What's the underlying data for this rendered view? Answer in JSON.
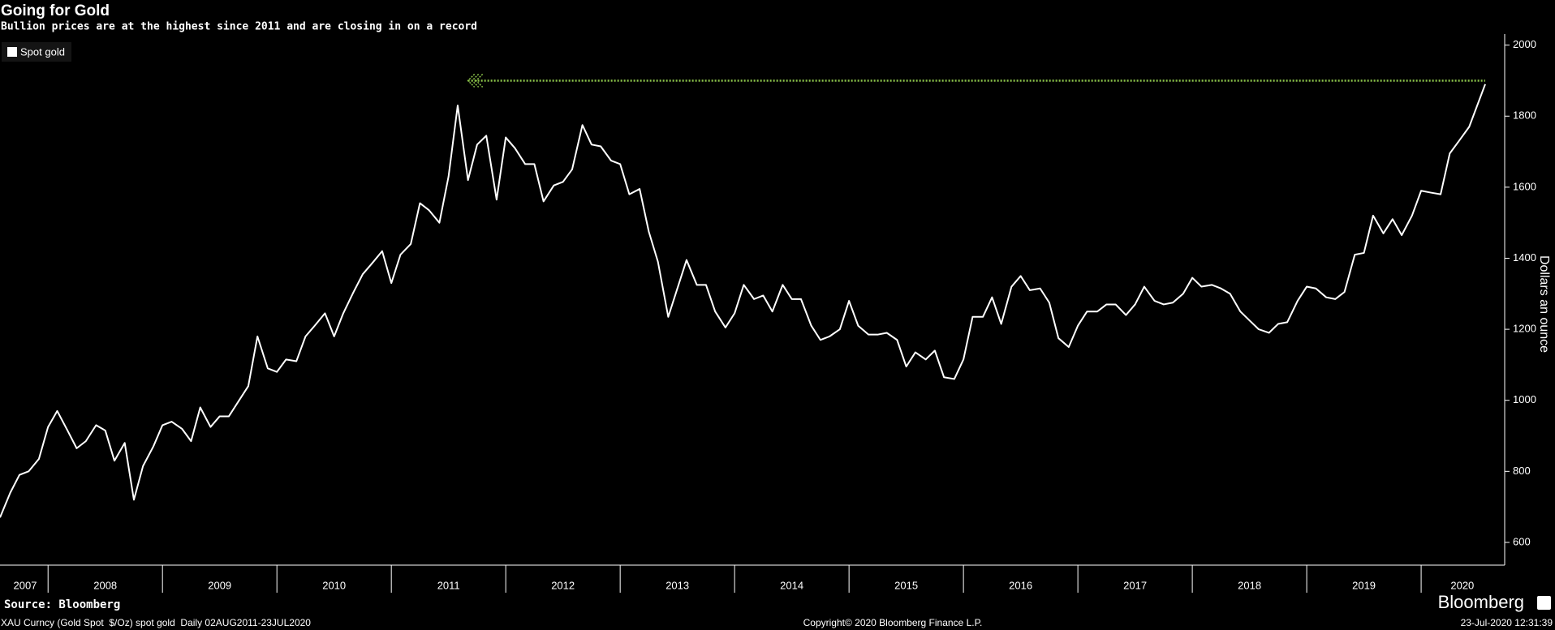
{
  "chart_data": {
    "type": "line",
    "title": "Going for Gold",
    "subtitle": "Bullion prices are at the highest since 2011 and are closing in on a record",
    "y_axis_label": "Dollars an ounce",
    "legend_position": "upper left",
    "x": [
      2007.58,
      2007.67,
      2007.75,
      2007.83,
      2007.92,
      2008.0,
      2008.08,
      2008.17,
      2008.25,
      2008.33,
      2008.42,
      2008.5,
      2008.58,
      2008.67,
      2008.75,
      2008.83,
      2008.92,
      2009.0,
      2009.08,
      2009.17,
      2009.25,
      2009.33,
      2009.42,
      2009.5,
      2009.58,
      2009.67,
      2009.75,
      2009.83,
      2009.92,
      2010.0,
      2010.08,
      2010.17,
      2010.25,
      2010.33,
      2010.42,
      2010.5,
      2010.58,
      2010.67,
      2010.75,
      2010.83,
      2010.92,
      2011.0,
      2011.08,
      2011.17,
      2011.25,
      2011.33,
      2011.42,
      2011.5,
      2011.58,
      2011.67,
      2011.75,
      2011.83,
      2011.92,
      2012.0,
      2012.08,
      2012.17,
      2012.25,
      2012.33,
      2012.42,
      2012.5,
      2012.58,
      2012.67,
      2012.75,
      2012.83,
      2012.92,
      2013.0,
      2013.08,
      2013.17,
      2013.25,
      2013.33,
      2013.42,
      2013.5,
      2013.58,
      2013.67,
      2013.75,
      2013.83,
      2013.92,
      2014.0,
      2014.08,
      2014.17,
      2014.25,
      2014.33,
      2014.42,
      2014.5,
      2014.58,
      2014.67,
      2014.75,
      2014.83,
      2014.92,
      2015.0,
      2015.08,
      2015.17,
      2015.25,
      2015.33,
      2015.42,
      2015.5,
      2015.58,
      2015.67,
      2015.75,
      2015.83,
      2015.92,
      2016.0,
      2016.08,
      2016.17,
      2016.25,
      2016.33,
      2016.42,
      2016.5,
      2016.58,
      2016.67,
      2016.75,
      2016.83,
      2016.92,
      2017.0,
      2017.08,
      2017.17,
      2017.25,
      2017.33,
      2017.42,
      2017.5,
      2017.58,
      2017.67,
      2017.75,
      2017.83,
      2017.92,
      2018.0,
      2018.08,
      2018.17,
      2018.25,
      2018.33,
      2018.42,
      2018.5,
      2018.58,
      2018.67,
      2018.75,
      2018.83,
      2018.92,
      2019.0,
      2019.08,
      2019.17,
      2019.25,
      2019.33,
      2019.42,
      2019.5,
      2019.58,
      2019.67,
      2019.75,
      2019.83,
      2019.92,
      2020.0,
      2020.08,
      2020.17,
      2020.25,
      2020.33,
      2020.42,
      2020.56
    ],
    "series": [
      {
        "name": "Spot gold",
        "color": "#ffffff",
        "values": [
          670,
          740,
          790,
          800,
          835,
          925,
          970,
          915,
          865,
          885,
          930,
          915,
          830,
          880,
          720,
          815,
          870,
          930,
          940,
          920,
          885,
          980,
          925,
          955,
          955,
          1000,
          1040,
          1180,
          1090,
          1080,
          1115,
          1110,
          1180,
          1210,
          1245,
          1180,
          1245,
          1305,
          1355,
          1385,
          1420,
          1330,
          1410,
          1440,
          1555,
          1535,
          1500,
          1630,
          1830,
          1620,
          1720,
          1745,
          1565,
          1740,
          1710,
          1665,
          1665,
          1560,
          1605,
          1615,
          1650,
          1775,
          1720,
          1715,
          1675,
          1665,
          1580,
          1595,
          1475,
          1390,
          1235,
          1315,
          1395,
          1325,
          1325,
          1250,
          1205,
          1245,
          1325,
          1285,
          1295,
          1250,
          1325,
          1285,
          1285,
          1210,
          1170,
          1180,
          1200,
          1280,
          1210,
          1185,
          1185,
          1190,
          1170,
          1095,
          1135,
          1115,
          1140,
          1065,
          1060,
          1115,
          1235,
          1235,
          1290,
          1215,
          1320,
          1350,
          1310,
          1315,
          1275,
          1175,
          1150,
          1210,
          1250,
          1250,
          1270,
          1270,
          1240,
          1270,
          1320,
          1280,
          1270,
          1275,
          1300,
          1345,
          1320,
          1325,
          1315,
          1300,
          1250,
          1225,
          1200,
          1190,
          1215,
          1220,
          1280,
          1320,
          1315,
          1290,
          1285,
          1305,
          1410,
          1415,
          1520,
          1470,
          1510,
          1465,
          1520,
          1590,
          1585,
          1580,
          1695,
          1730,
          1770,
          1890
        ]
      }
    ],
    "reference_line": {
      "value": 1900,
      "x_start": 2011.67,
      "x_end": 2020.56,
      "color": "#8bc34a"
    },
    "xlim": [
      2007.58,
      2020.73
    ],
    "x_separators": [
      2008,
      2009,
      2010,
      2011,
      2012,
      2013,
      2014,
      2015,
      2016,
      2017,
      2018,
      2019,
      2020
    ],
    "xticks": [
      {
        "value": 2007.8,
        "label": "2007"
      },
      {
        "value": 2008.5,
        "label": "2008"
      },
      {
        "value": 2009.5,
        "label": "2009"
      },
      {
        "value": 2010.5,
        "label": "2010"
      },
      {
        "value": 2011.5,
        "label": "2011"
      },
      {
        "value": 2012.5,
        "label": "2012"
      },
      {
        "value": 2013.5,
        "label": "2013"
      },
      {
        "value": 2014.5,
        "label": "2014"
      },
      {
        "value": 2015.5,
        "label": "2015"
      },
      {
        "value": 2016.5,
        "label": "2016"
      },
      {
        "value": 2017.5,
        "label": "2017"
      },
      {
        "value": 2018.5,
        "label": "2018"
      },
      {
        "value": 2019.5,
        "label": "2019"
      },
      {
        "value": 2020.36,
        "label": "2020"
      }
    ],
    "ylim": [
      536,
      2022
    ],
    "yticks": [
      600,
      800,
      1000,
      1200,
      1400,
      1600,
      1800,
      2000
    ],
    "source": "Source: Bloomberg",
    "footer_left": "XAU Curncy (Gold Spot  $/Oz) spot gold  Daily 02AUG2011-23JUL2020",
    "copyright": "Copyright© 2020 Bloomberg Finance L.P.",
    "timestamp": "23-Jul-2020 12:31:39",
    "brand": "Bloomberg"
  }
}
